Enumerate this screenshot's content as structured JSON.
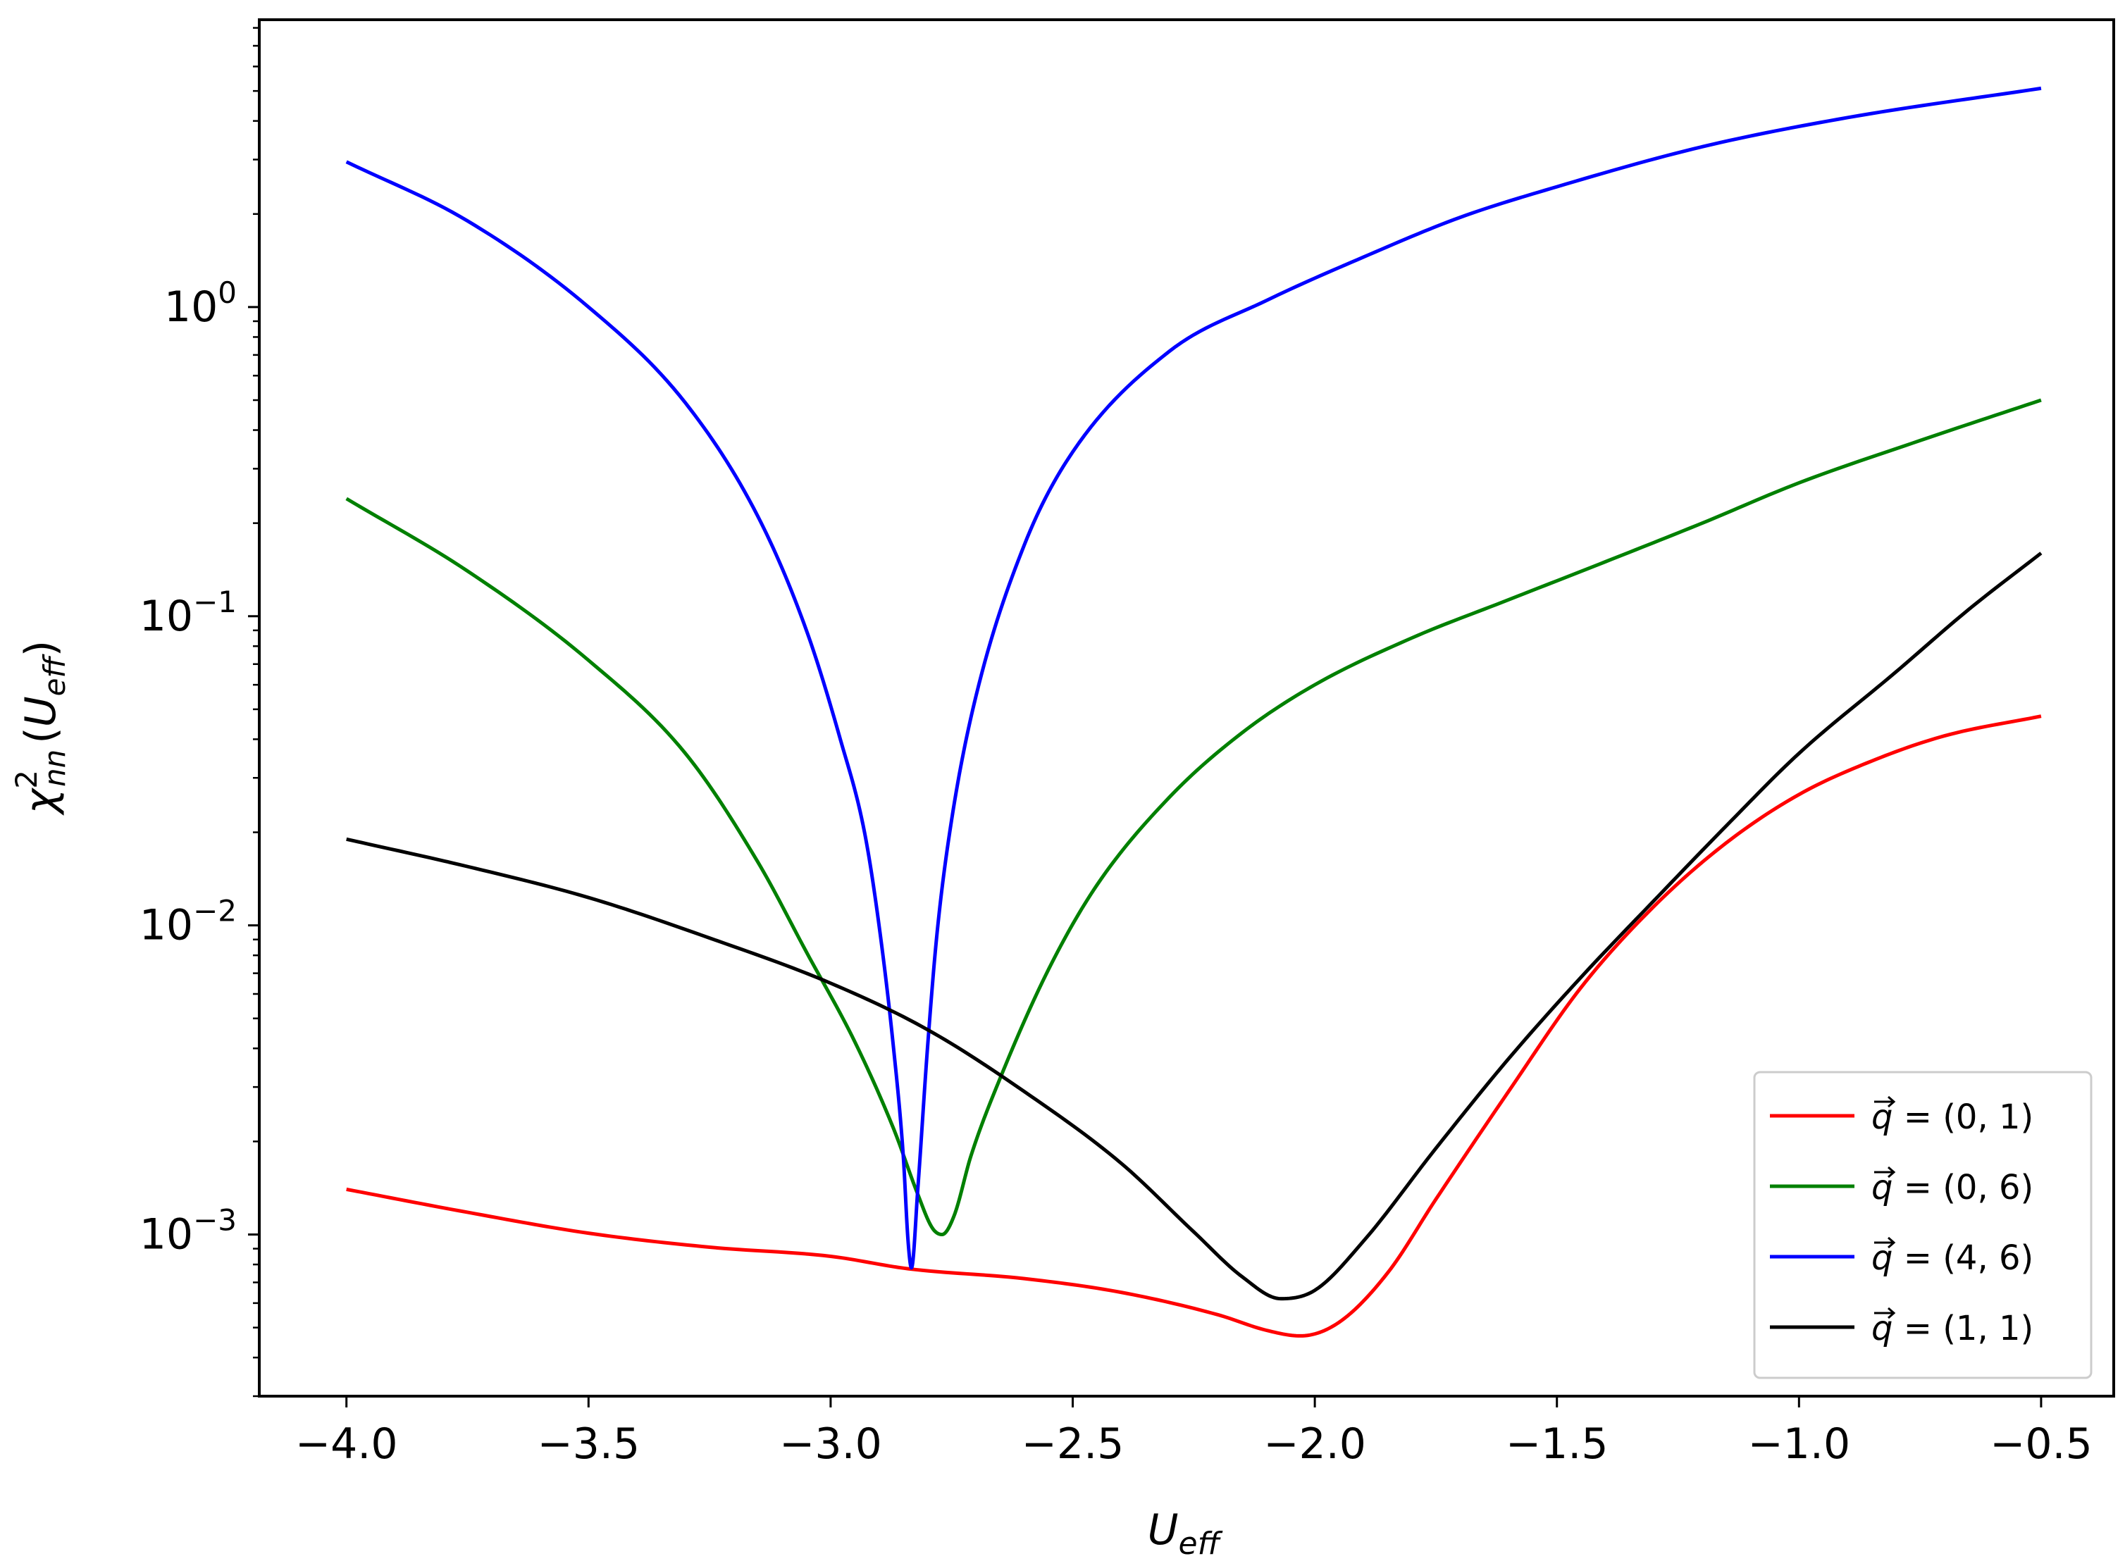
{
  "chart_data": {
    "type": "line",
    "title": "",
    "xlabel": {
      "base": "U",
      "sub": "eff"
    },
    "ylabel": {
      "base": "χ",
      "sup": "2",
      "sub": "nn",
      "arg_base": "U",
      "arg_sub": "eff"
    },
    "xlim": [
      -4.18,
      -0.35
    ],
    "ylim": [
      0.0003,
      8.5
    ],
    "yscale": "log",
    "grid": false,
    "legend_position": "lower-right",
    "x_ticks": [
      {
        "value": -4.0,
        "label": "−4.0"
      },
      {
        "value": -3.5,
        "label": "−3.5"
      },
      {
        "value": -3.0,
        "label": "−3.0"
      },
      {
        "value": -2.5,
        "label": "−2.5"
      },
      {
        "value": -2.0,
        "label": "−2.0"
      },
      {
        "value": -1.5,
        "label": "−1.5"
      },
      {
        "value": -1.0,
        "label": "−1.0"
      },
      {
        "value": -0.5,
        "label": "−0.5"
      }
    ],
    "y_ticks": [
      {
        "value": 0.001,
        "base": "10",
        "exp": "−3"
      },
      {
        "value": 0.01,
        "base": "10",
        "exp": "−2"
      },
      {
        "value": 0.1,
        "base": "10",
        "exp": "−1"
      },
      {
        "value": 1,
        "base": "10",
        "exp": "0"
      }
    ],
    "series": [
      {
        "name": "q⃗ = (0, 1)",
        "label_prefix": "q",
        "label_value": " = (0, 1)",
        "color": "#ff0000",
        "points": [
          [
            -4.0,
            0.0014
          ],
          [
            -3.75,
            0.00118
          ],
          [
            -3.5,
            0.00101
          ],
          [
            -3.25,
            0.00091
          ],
          [
            -3.0,
            0.00085
          ],
          [
            -2.84,
            0.000775
          ],
          [
            -2.6,
            0.00072
          ],
          [
            -2.4,
            0.00065
          ],
          [
            -2.2,
            0.00055
          ],
          [
            -2.1,
            0.00049
          ],
          [
            -2.03,
            0.00047
          ],
          [
            -1.95,
            0.00052
          ],
          [
            -1.85,
            0.00075
          ],
          [
            -1.75,
            0.0013
          ],
          [
            -1.6,
            0.0029
          ],
          [
            -1.45,
            0.0063
          ],
          [
            -1.3,
            0.0115
          ],
          [
            -1.15,
            0.0185
          ],
          [
            -1.0,
            0.0265
          ],
          [
            -0.85,
            0.034
          ],
          [
            -0.7,
            0.041
          ],
          [
            -0.5,
            0.0475
          ]
        ]
      },
      {
        "name": "q⃗ = (0, 6)",
        "label_prefix": "q",
        "label_value": " = (0, 6)",
        "color": "#008000",
        "points": [
          [
            -4.0,
            0.24
          ],
          [
            -3.75,
            0.14
          ],
          [
            -3.5,
            0.072
          ],
          [
            -3.3,
            0.036
          ],
          [
            -3.15,
            0.016
          ],
          [
            -3.05,
            0.0082
          ],
          [
            -2.95,
            0.0042
          ],
          [
            -2.87,
            0.0022
          ],
          [
            -2.82,
            0.00135
          ],
          [
            -2.79,
            0.00105
          ],
          [
            -2.77,
            0.001
          ],
          [
            -2.745,
            0.00115
          ],
          [
            -2.71,
            0.0018
          ],
          [
            -2.65,
            0.0032
          ],
          [
            -2.55,
            0.0072
          ],
          [
            -2.45,
            0.0135
          ],
          [
            -2.3,
            0.026
          ],
          [
            -2.15,
            0.042
          ],
          [
            -2.0,
            0.06
          ],
          [
            -1.8,
            0.085
          ],
          [
            -1.6,
            0.113
          ],
          [
            -1.4,
            0.15
          ],
          [
            -1.2,
            0.2
          ],
          [
            -1.0,
            0.27
          ],
          [
            -0.75,
            0.37
          ],
          [
            -0.5,
            0.5
          ]
        ]
      },
      {
        "name": "q⃗ = (4, 6)",
        "label_prefix": "q",
        "label_value": " = (4, 6)",
        "color": "#0000ff",
        "points": [
          [
            -4.0,
            2.95
          ],
          [
            -3.75,
            1.9
          ],
          [
            -3.5,
            1.0
          ],
          [
            -3.3,
            0.49
          ],
          [
            -3.15,
            0.21
          ],
          [
            -3.05,
            0.09
          ],
          [
            -2.98,
            0.04
          ],
          [
            -2.93,
            0.02
          ],
          [
            -2.9,
            0.01
          ],
          [
            -2.87,
            0.004
          ],
          [
            -2.85,
            0.0018
          ],
          [
            -2.84,
            0.00095
          ],
          [
            -2.833,
            0.00078
          ],
          [
            -2.82,
            0.0014
          ],
          [
            -2.8,
            0.004
          ],
          [
            -2.78,
            0.0095
          ],
          [
            -2.75,
            0.022
          ],
          [
            -2.7,
            0.055
          ],
          [
            -2.6,
            0.17
          ],
          [
            -2.5,
            0.34
          ],
          [
            -2.3,
            0.72
          ],
          [
            -2.1,
            1.05
          ],
          [
            -1.9,
            1.45
          ],
          [
            -1.7,
            1.95
          ],
          [
            -1.5,
            2.45
          ],
          [
            -1.2,
            3.3
          ],
          [
            -0.9,
            4.1
          ],
          [
            -0.5,
            5.1
          ]
        ]
      },
      {
        "name": "q⃗ = (1, 1)",
        "label_prefix": "q",
        "label_value": " = (1, 1)",
        "color": "#000000",
        "points": [
          [
            -4.0,
            0.019
          ],
          [
            -3.75,
            0.0155
          ],
          [
            -3.5,
            0.0123
          ],
          [
            -3.25,
            0.0091
          ],
          [
            -3.0,
            0.0065
          ],
          [
            -2.8,
            0.0046
          ],
          [
            -2.6,
            0.0029
          ],
          [
            -2.4,
            0.0017
          ],
          [
            -2.25,
            0.00102
          ],
          [
            -2.15,
            0.00073
          ],
          [
            -2.07,
            0.00062
          ],
          [
            -2.0,
            0.00066
          ],
          [
            -1.9,
            0.00095
          ],
          [
            -1.75,
            0.0019
          ],
          [
            -1.6,
            0.0037
          ],
          [
            -1.45,
            0.0068
          ],
          [
            -1.3,
            0.012
          ],
          [
            -1.15,
            0.021
          ],
          [
            -1.0,
            0.036
          ],
          [
            -0.8,
            0.066
          ],
          [
            -0.65,
            0.105
          ],
          [
            -0.5,
            0.16
          ]
        ]
      }
    ]
  }
}
